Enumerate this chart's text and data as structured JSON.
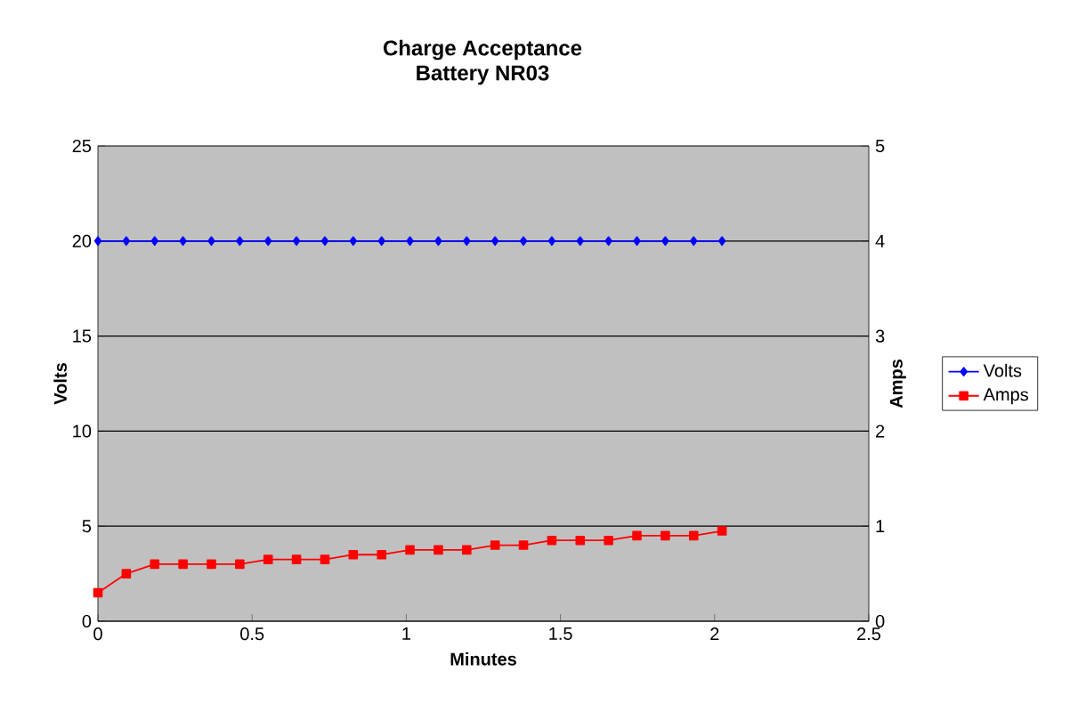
{
  "chart_data": {
    "type": "line",
    "title": "Charge Acceptance",
    "subtitle": "Battery NR03",
    "xlabel": "Minutes",
    "ylabel": "Volts",
    "y2label": "Amps",
    "x": [
      0,
      0.092,
      0.184,
      0.276,
      0.368,
      0.46,
      0.552,
      0.644,
      0.736,
      0.828,
      0.92,
      1.012,
      1.104,
      1.196,
      1.288,
      1.38,
      1.472,
      1.564,
      1.656,
      1.748,
      1.84,
      1.932,
      2.024
    ],
    "series": [
      {
        "name": "Volts",
        "color": "#0000ff",
        "marker": "diamond",
        "values": [
          20,
          20,
          20,
          20,
          20,
          20,
          20,
          20,
          20,
          20,
          20,
          20,
          20,
          20,
          20,
          20,
          20,
          20,
          20,
          20,
          20,
          20,
          20
        ]
      },
      {
        "name": "Amps",
        "color": "#ff0000",
        "marker": "square",
        "axis": "y2",
        "values": [
          0.3,
          0.5,
          0.6,
          0.6,
          0.6,
          0.6,
          0.65,
          0.65,
          0.65,
          0.7,
          0.7,
          0.75,
          0.75,
          0.75,
          0.8,
          0.8,
          0.85,
          0.85,
          0.85,
          0.9,
          0.9,
          0.9,
          0.95
        ]
      }
    ],
    "xlim": [
      0,
      2.5
    ],
    "xticks": [
      0,
      0.5,
      1,
      1.5,
      2,
      2.5
    ],
    "ylim": [
      0,
      25
    ],
    "yticks": [
      0,
      5,
      10,
      15,
      20,
      25
    ],
    "y2lim": [
      0,
      5
    ],
    "y2ticks": [
      0,
      1,
      2,
      3,
      4,
      5
    ],
    "grid": "y",
    "legend": "right",
    "line_style": "solid"
  }
}
